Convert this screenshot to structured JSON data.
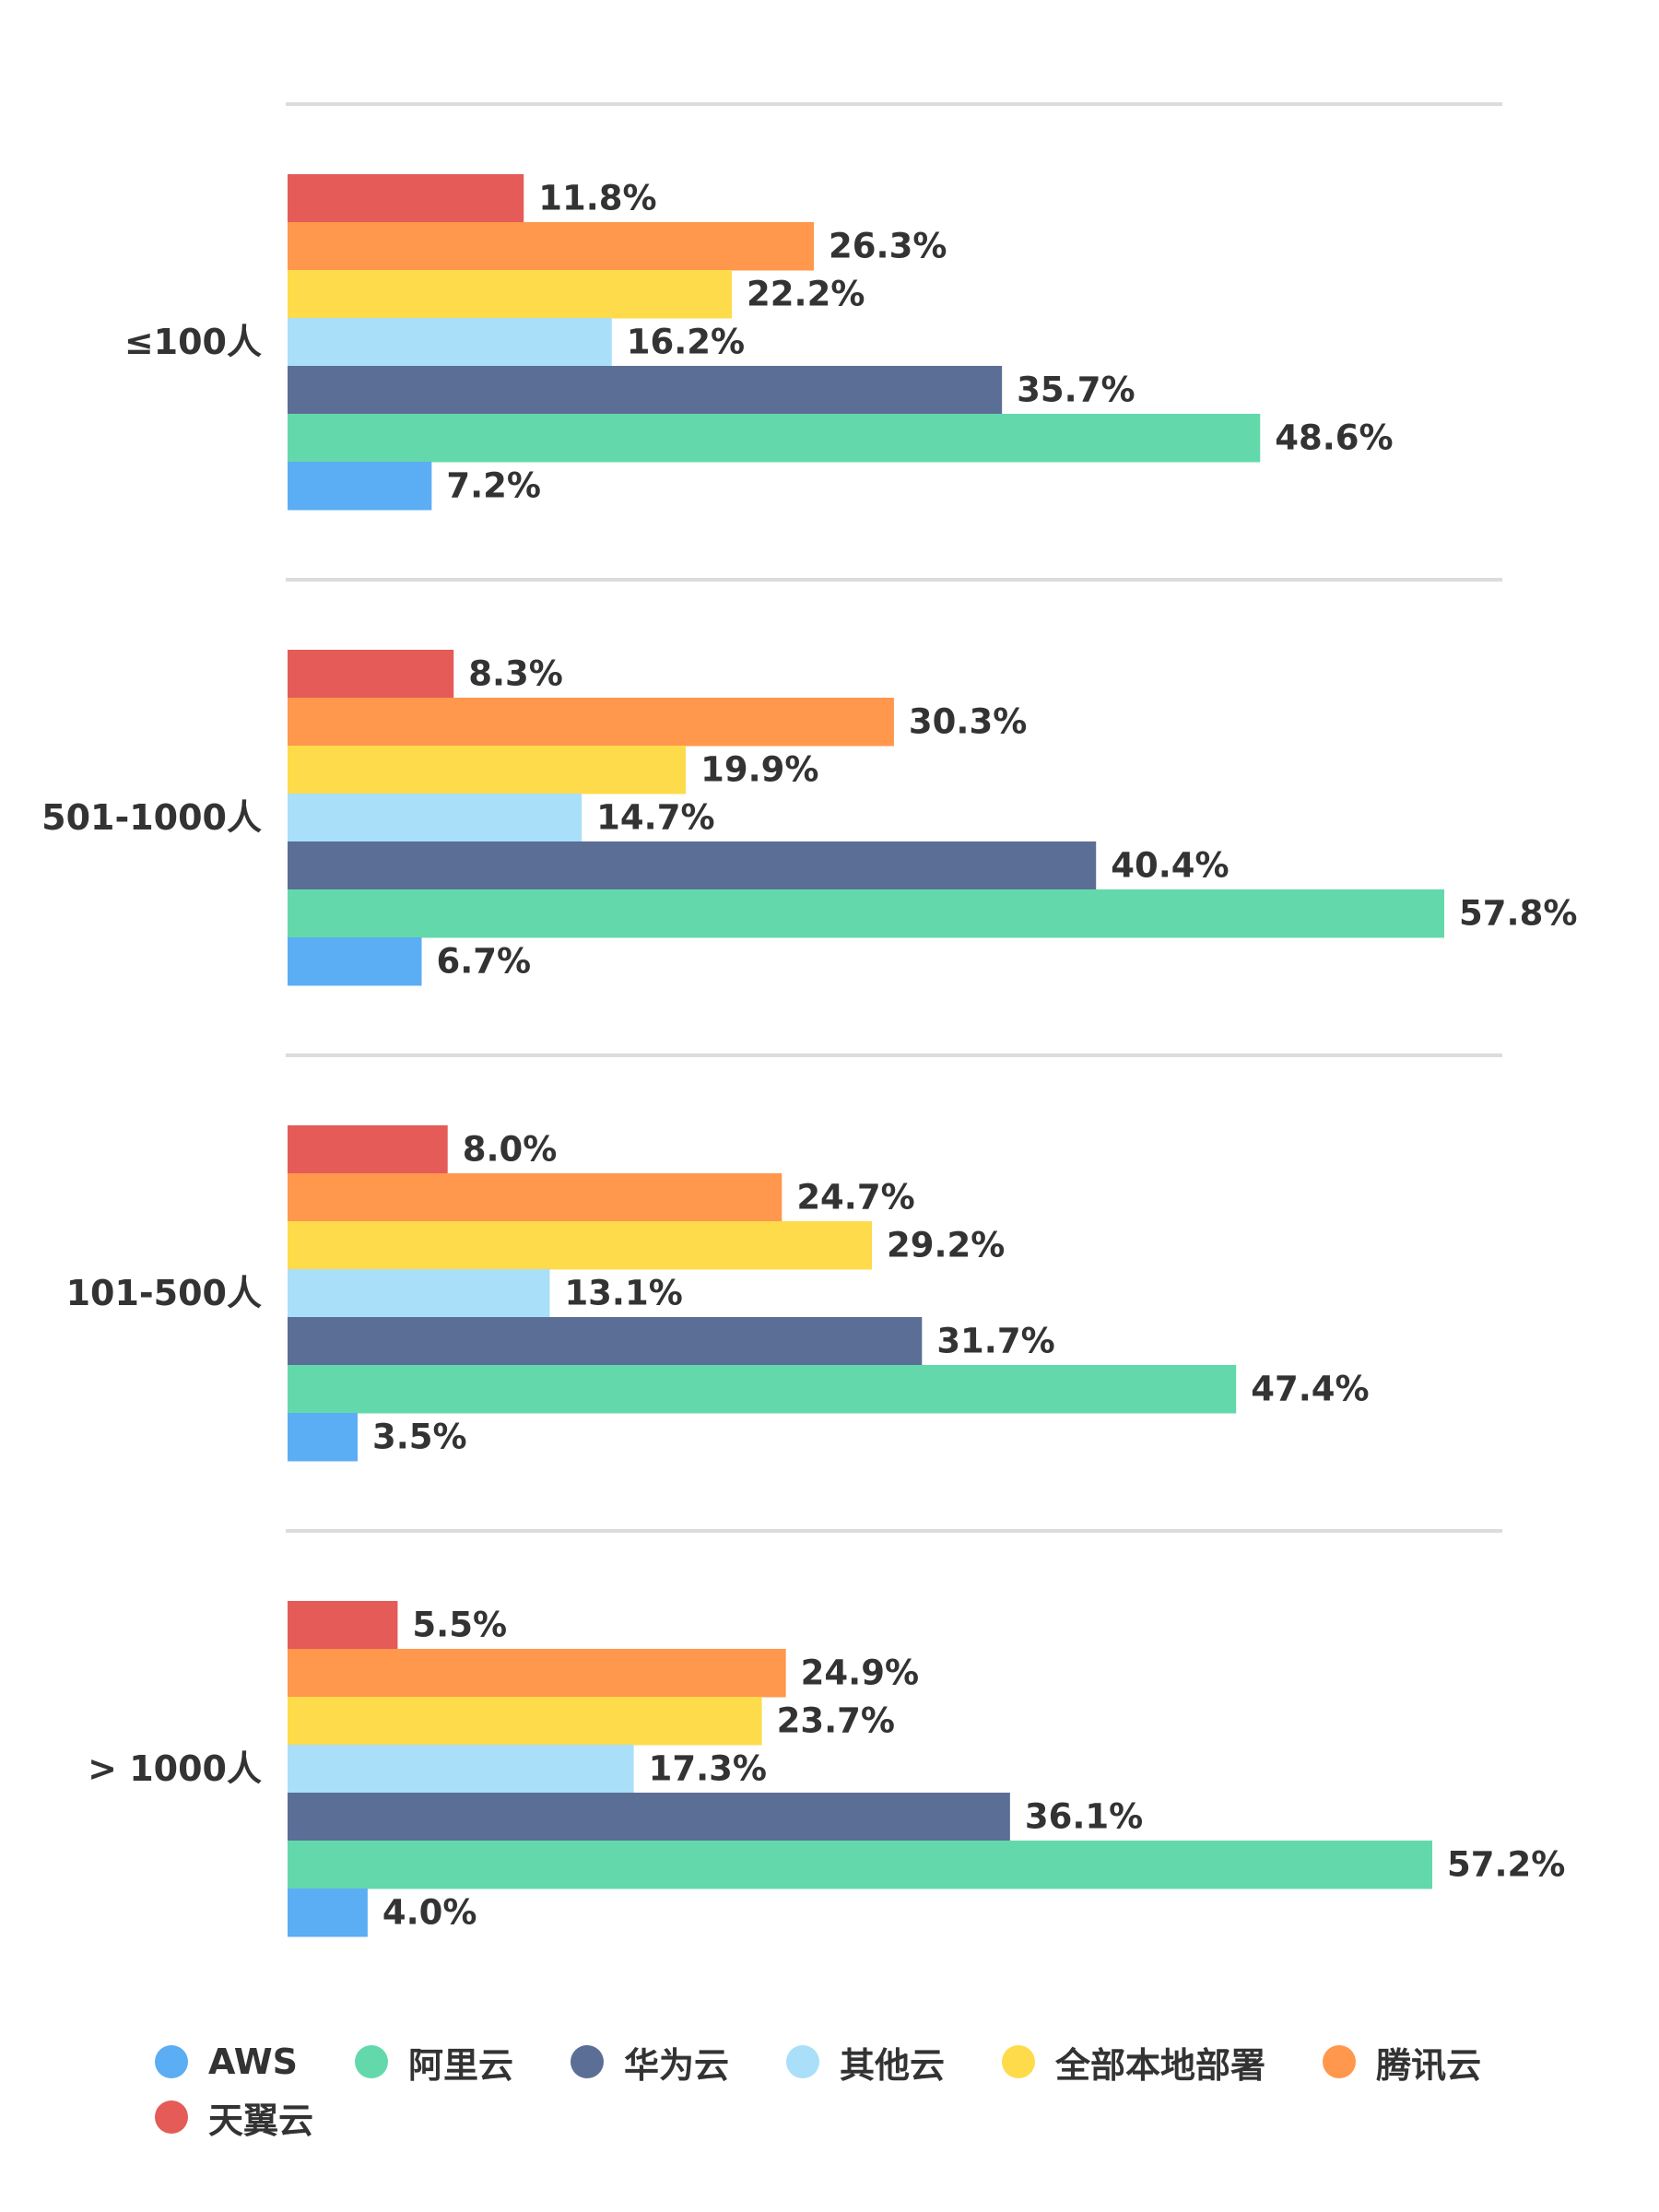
{
  "chart_data": {
    "type": "bar",
    "orientation": "horizontal",
    "title": "",
    "xlabel": "",
    "ylabel": "",
    "xlim": [
      0,
      60.7
    ],
    "grid": true,
    "legend_position": "bottom",
    "value_format": "percent",
    "categories": [
      "≤100人",
      "501-1000人",
      "101-500人",
      "> 1000人"
    ],
    "series": [
      {
        "name": "天翼云",
        "color": "#E45B57",
        "values": [
          11.8,
          8.3,
          8.0,
          5.5
        ],
        "labels": [
          "11.8%",
          "8.3%",
          "8.0%",
          "5.5%"
        ]
      },
      {
        "name": "腾讯云",
        "color": "#FF974D",
        "values": [
          26.3,
          30.3,
          24.7,
          24.9
        ],
        "labels": [
          "26.3%",
          "30.3%",
          "24.7%",
          "24.9%"
        ]
      },
      {
        "name": "全部本地部署",
        "color": "#FEDB4B",
        "values": [
          22.2,
          19.9,
          29.2,
          23.7
        ],
        "labels": [
          "22.2%",
          "19.9%",
          "29.2%",
          "23.7%"
        ]
      },
      {
        "name": "其他云",
        "color": "#A9DFF9",
        "values": [
          16.2,
          14.7,
          13.1,
          17.3
        ],
        "labels": [
          "16.2%",
          "14.7%",
          "13.1%",
          "17.3%"
        ]
      },
      {
        "name": "华为云",
        "color": "#5B6E96",
        "values": [
          35.7,
          40.4,
          31.7,
          36.1
        ],
        "labels": [
          "35.7%",
          "40.4%",
          "31.7%",
          "36.1%"
        ]
      },
      {
        "name": "阿里云",
        "color": "#63D9AB",
        "values": [
          48.6,
          57.8,
          47.4,
          57.2
        ],
        "labels": [
          "48.6%",
          "57.8%",
          "47.4%",
          "57.2%"
        ]
      },
      {
        "name": "AWS",
        "color": "#5BADF4",
        "values": [
          7.2,
          6.7,
          3.5,
          4.0
        ],
        "labels": [
          "7.2%",
          "6.7%",
          "3.5%",
          "4.0%"
        ]
      }
    ],
    "legend": [
      {
        "name": "AWS",
        "color": "#5BADF4"
      },
      {
        "name": "阿里云",
        "color": "#63D9AB"
      },
      {
        "name": "华为云",
        "color": "#5B6E96"
      },
      {
        "name": "其他云",
        "color": "#A9DFF9"
      },
      {
        "name": "全部本地部署",
        "color": "#FEDB4B"
      },
      {
        "name": "腾讯云",
        "color": "#FF974D"
      },
      {
        "name": "天翼云",
        "color": "#E45B57"
      }
    ]
  }
}
